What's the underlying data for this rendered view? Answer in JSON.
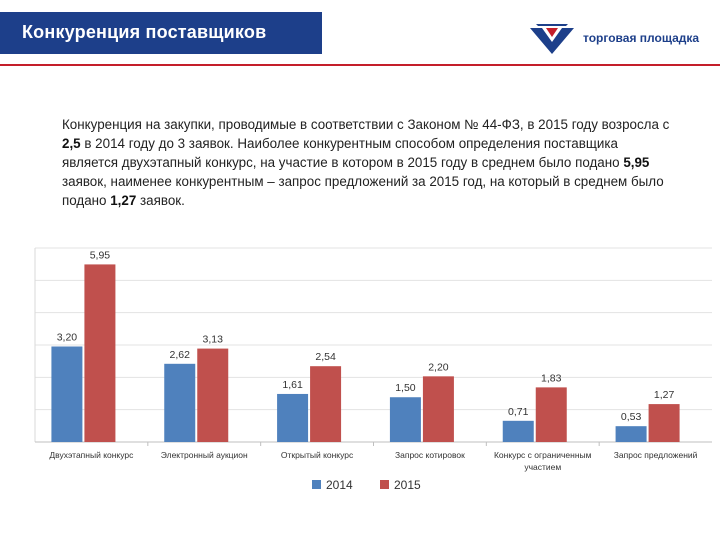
{
  "header": {
    "title": "Конкуренция поставщиков",
    "logo_text": "торговая площадка",
    "colors": {
      "title_bg": "#1d3f8a",
      "accent_line": "#c41e2a"
    }
  },
  "intro": {
    "part1": "Конкуренция на закупки, проводимые в соответствии с Законом № 44-ФЗ, в 2015 году возросла с ",
    "val1": "2,5",
    "part2": " в 2014 году до 3 заявок. Наиболее конкурентным способом определения поставщика является двухэтапный конкурс, на участие в котором в 2015 году в среднем было подано ",
    "val2": "5,95",
    "part3": " заявок, наименее конкурентным – запрос предложений за 2015 год, на который в среднем было подано ",
    "val3": "1,27",
    "part4": " заявок."
  },
  "chart_data": {
    "type": "bar",
    "categories": [
      "Двухэтапный конкурс",
      "Электронный аукцион",
      "Открытый конкурс",
      "Запрос котировок",
      "Конкурс с ограниченным участием",
      "Запрос предложений"
    ],
    "series": [
      {
        "name": "2014",
        "color": "#4f81bd",
        "values": [
          3.2,
          2.62,
          1.61,
          1.5,
          0.71,
          0.53
        ],
        "labels": [
          "3,20",
          "2,62",
          "1,61",
          "1,50",
          "0,71",
          "0,53"
        ]
      },
      {
        "name": "2015",
        "color": "#c0504d",
        "values": [
          5.95,
          3.13,
          2.54,
          2.2,
          1.83,
          1.27
        ],
        "labels": [
          "5,95",
          "3,13",
          "2,54",
          "2,20",
          "1,83",
          "1,27"
        ]
      }
    ],
    "ylim": [
      0,
      6.5
    ],
    "grid": true,
    "legend_position": "bottom"
  }
}
